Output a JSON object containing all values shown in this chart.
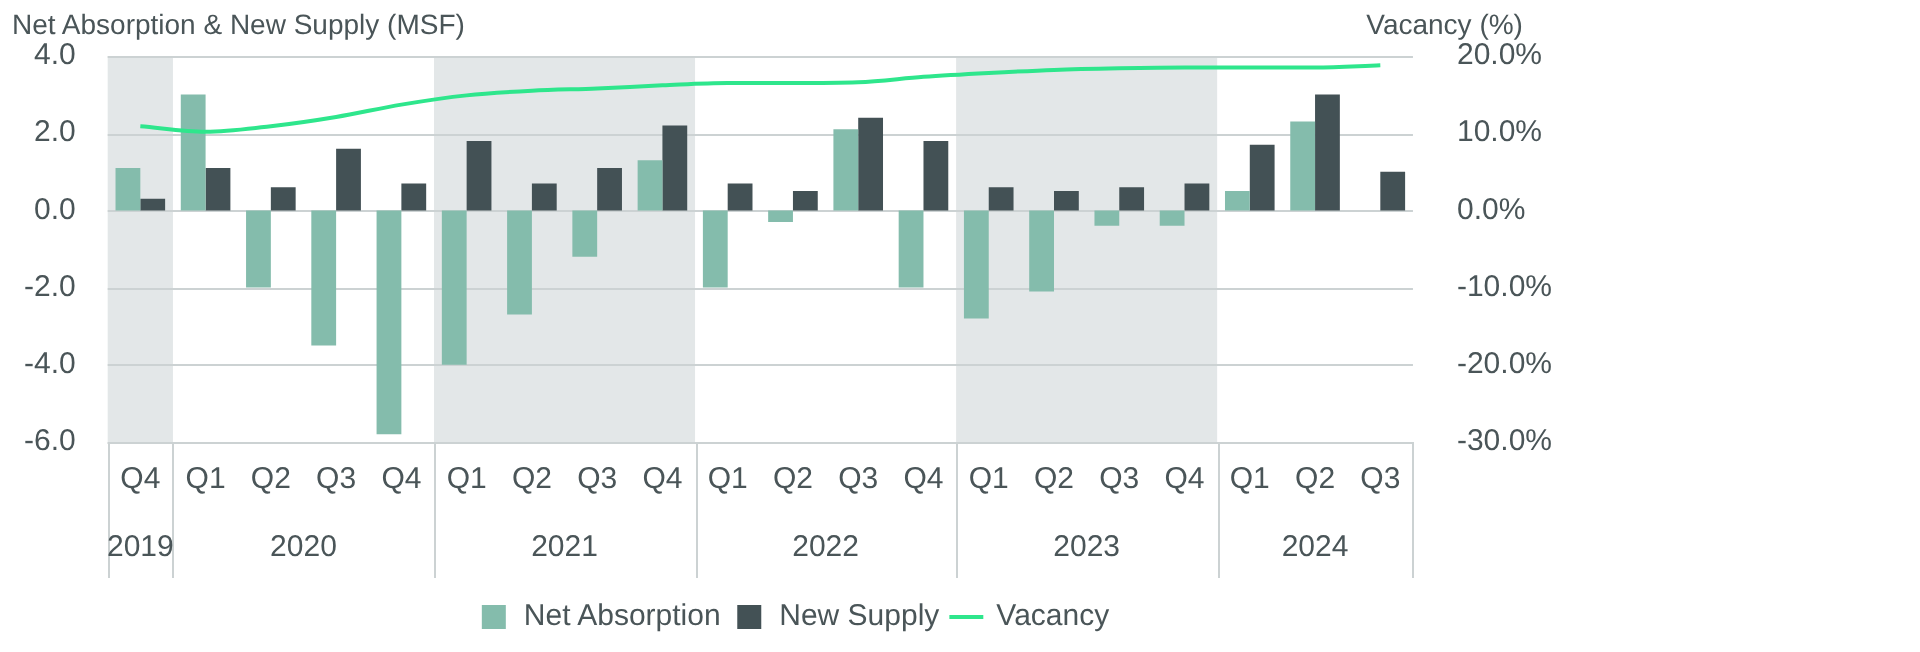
{
  "chart_data": {
    "type": "bar",
    "ylabel": "Net Absorption & New Supply (MSF)",
    "y2label": "Vacancy (%)",
    "categories": [
      "Q4",
      "Q1",
      "Q2",
      "Q3",
      "Q4",
      "Q1",
      "Q2",
      "Q3",
      "Q4",
      "Q1",
      "Q2",
      "Q3",
      "Q4",
      "Q1",
      "Q2",
      "Q3",
      "Q4",
      "Q1",
      "Q2",
      "Q3"
    ],
    "series": [
      {
        "name": "Net Absorption",
        "color": "#84bcac",
        "values": [
          1.1,
          3.0,
          -2.0,
          -3.5,
          -5.8,
          -4.0,
          -2.7,
          -1.2,
          1.3,
          -2.0,
          -0.3,
          2.1,
          -2.0,
          -2.8,
          -2.1,
          -0.4,
          -0.4,
          0.5,
          2.3,
          null
        ]
      },
      {
        "name": "New Supply",
        "color": "#435155",
        "values": [
          0.3,
          1.1,
          0.6,
          1.6,
          0.7,
          1.8,
          0.7,
          1.1,
          2.2,
          0.7,
          0.5,
          2.4,
          1.8,
          0.6,
          0.5,
          0.6,
          0.7,
          1.7,
          3.0,
          1.0
        ]
      },
      {
        "name": "Vacancy",
        "type": "line",
        "axis": "y2",
        "color": "#2ee68c",
        "values": [
          10.9,
          10.2,
          10.9,
          12.1,
          13.7,
          14.9,
          15.5,
          15.8,
          16.2,
          16.5,
          16.5,
          16.6,
          17.3,
          17.8,
          18.2,
          18.4,
          18.5,
          18.5,
          18.5,
          18.8
        ]
      }
    ],
    "ylim": [
      -6,
      4
    ],
    "yticks": [
      {
        "value": -6,
        "label": "-6.0"
      },
      {
        "value": -4,
        "label": "-4.0"
      },
      {
        "value": -2,
        "label": "-2.0"
      },
      {
        "value": 0,
        "label": "0.0"
      },
      {
        "value": 2,
        "label": "2.0"
      },
      {
        "value": 4,
        "label": "4.0"
      }
    ],
    "y2lim": [
      -30,
      20
    ],
    "y2ticks": [
      {
        "value": -30,
        "label": "-30.0%"
      },
      {
        "value": -20,
        "label": "-20.0%"
      },
      {
        "value": -10,
        "label": "-10.0%"
      },
      {
        "value": 0,
        "label": "0.0%"
      },
      {
        "value": 10,
        "label": "10.0%"
      },
      {
        "value": 20,
        "label": "20.0%"
      }
    ],
    "annotations": [
      "2019",
      "2020",
      "2021",
      "2022",
      "2023",
      "2024"
    ],
    "grid": "y",
    "legend": "bottom",
    "marker": "none",
    "line_style": "solid"
  }
}
